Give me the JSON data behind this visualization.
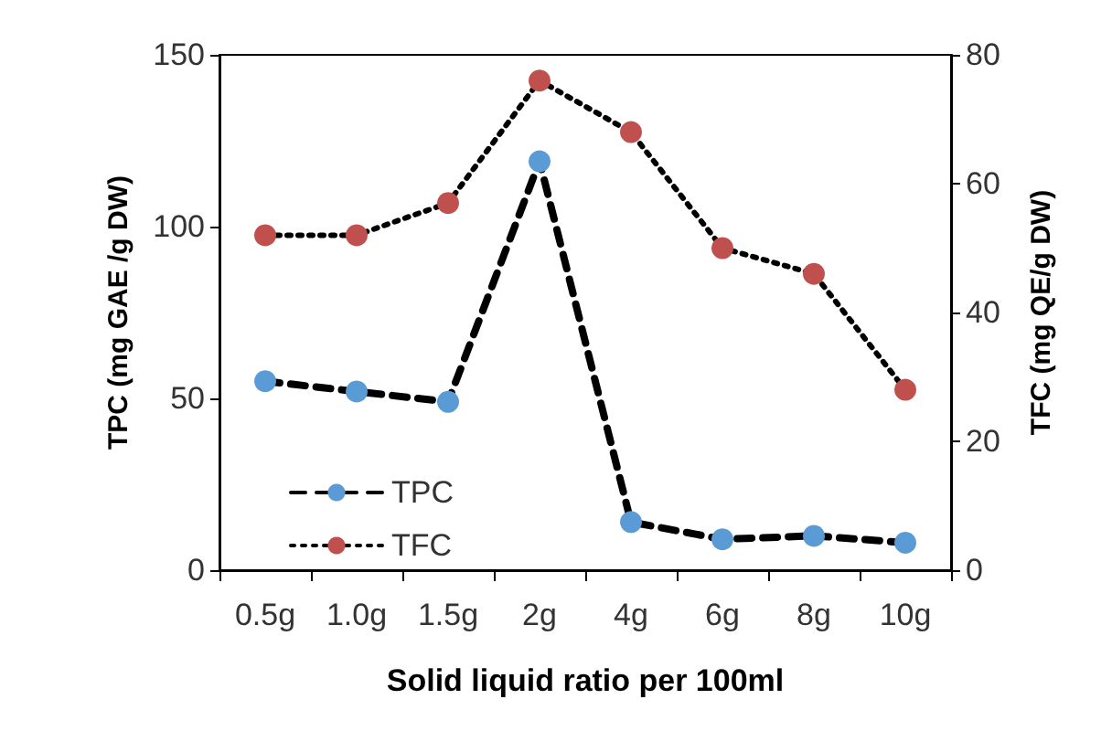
{
  "chart_data": {
    "type": "line",
    "xlabel": "Solid liquid ratio per 100ml",
    "ylabel": "TPC (mg GAE /g DW)",
    "y2label": "TFC (mg QE/g DW)",
    "categories": [
      "0.5g",
      "1.0g",
      "1.5g",
      "2g",
      "4g",
      "6g",
      "8g",
      "10g"
    ],
    "series": [
      {
        "name": "TPC",
        "color": "#5b9bd5",
        "line_style": "dashed",
        "values": [
          55,
          52,
          49,
          119,
          14,
          9,
          10,
          8
        ]
      },
      {
        "name": "TFC",
        "color": "#c0504d",
        "line_style": "dotted",
        "axis": "y2",
        "values": [
          52,
          52,
          57,
          76,
          68,
          50,
          46,
          28
        ]
      }
    ],
    "ylim": [
      0,
      150
    ],
    "yticks": [
      0,
      50,
      100,
      150
    ],
    "y2lim": [
      0,
      80
    ],
    "y2ticks": [
      0,
      20,
      40,
      60,
      80
    ],
    "marker": "circle",
    "grid": false,
    "legend": "bottom left"
  }
}
